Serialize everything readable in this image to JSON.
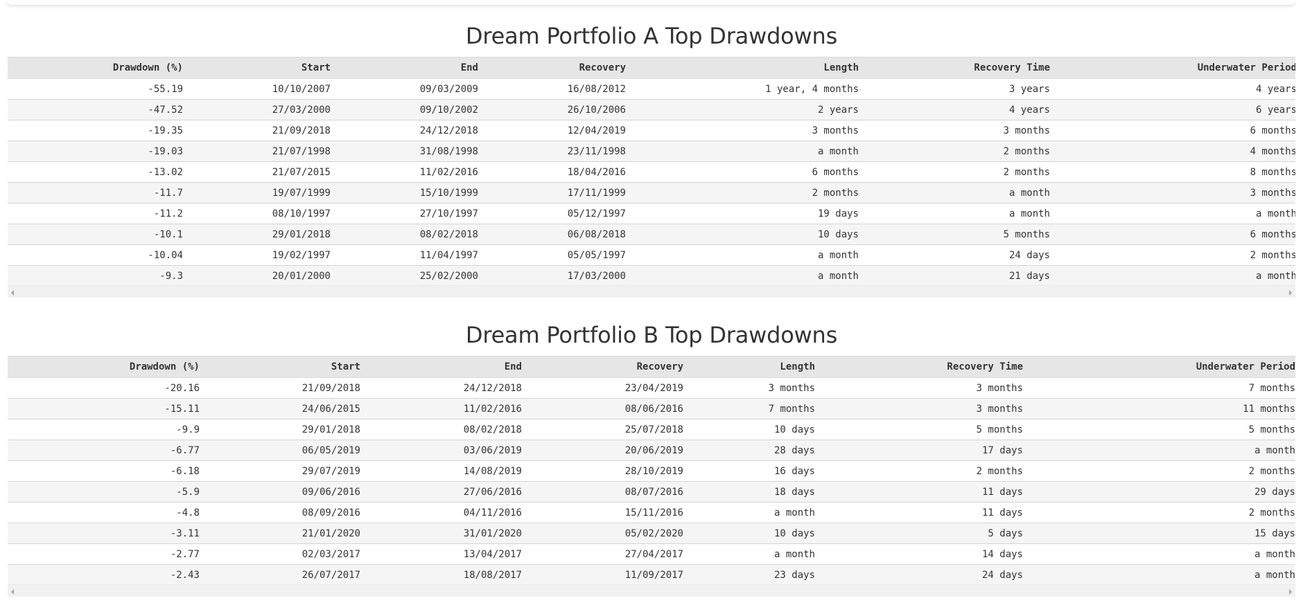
{
  "columns": [
    "Drawdown (%)",
    "Start",
    "End",
    "Recovery",
    "Length",
    "Recovery Time",
    "Underwater Period"
  ],
  "tables": [
    {
      "title": "Dream Portfolio A Top Drawdowns",
      "rows": [
        [
          "-55.19",
          "10/10/2007",
          "09/03/2009",
          "16/08/2012",
          "1 year, 4 months",
          "3 years",
          "4 years"
        ],
        [
          "-47.52",
          "27/03/2000",
          "09/10/2002",
          "26/10/2006",
          "2 years",
          "4 years",
          "6 years"
        ],
        [
          "-19.35",
          "21/09/2018",
          "24/12/2018",
          "12/04/2019",
          "3 months",
          "3 months",
          "6 months"
        ],
        [
          "-19.03",
          "21/07/1998",
          "31/08/1998",
          "23/11/1998",
          "a month",
          "2 months",
          "4 months"
        ],
        [
          "-13.02",
          "21/07/2015",
          "11/02/2016",
          "18/04/2016",
          "6 months",
          "2 months",
          "8 months"
        ],
        [
          "-11.7",
          "19/07/1999",
          "15/10/1999",
          "17/11/1999",
          "2 months",
          "a month",
          "3 months"
        ],
        [
          "-11.2",
          "08/10/1997",
          "27/10/1997",
          "05/12/1997",
          "19 days",
          "a month",
          "a month"
        ],
        [
          "-10.1",
          "29/01/2018",
          "08/02/2018",
          "06/08/2018",
          "10 days",
          "5 months",
          "6 months"
        ],
        [
          "-10.04",
          "19/02/1997",
          "11/04/1997",
          "05/05/1997",
          "a month",
          "24 days",
          "2 months"
        ],
        [
          "-9.3",
          "20/01/2000",
          "25/02/2000",
          "17/03/2000",
          "a month",
          "21 days",
          "a month"
        ]
      ]
    },
    {
      "title": "Dream Portfolio B Top Drawdowns",
      "rows": [
        [
          "-20.16",
          "21/09/2018",
          "24/12/2018",
          "23/04/2019",
          "3 months",
          "3 months",
          "7 months"
        ],
        [
          "-15.11",
          "24/06/2015",
          "11/02/2016",
          "08/06/2016",
          "7 months",
          "3 months",
          "11 months"
        ],
        [
          "-9.9",
          "29/01/2018",
          "08/02/2018",
          "25/07/2018",
          "10 days",
          "5 months",
          "5 months"
        ],
        [
          "-6.77",
          "06/05/2019",
          "03/06/2019",
          "20/06/2019",
          "28 days",
          "17 days",
          "a month"
        ],
        [
          "-6.18",
          "29/07/2019",
          "14/08/2019",
          "28/10/2019",
          "16 days",
          "2 months",
          "2 months"
        ],
        [
          "-5.9",
          "09/06/2016",
          "27/06/2016",
          "08/07/2016",
          "18 days",
          "11 days",
          "29 days"
        ],
        [
          "-4.8",
          "08/09/2016",
          "04/11/2016",
          "15/11/2016",
          "a month",
          "11 days",
          "2 months"
        ],
        [
          "-3.11",
          "21/01/2020",
          "31/01/2020",
          "05/02/2020",
          "10 days",
          "5 days",
          "15 days"
        ],
        [
          "-2.77",
          "02/03/2017",
          "13/04/2017",
          "27/04/2017",
          "a month",
          "14 days",
          "a month"
        ],
        [
          "-2.43",
          "26/07/2017",
          "18/08/2017",
          "11/09/2017",
          "23 days",
          "24 days",
          "a month"
        ]
      ]
    }
  ]
}
